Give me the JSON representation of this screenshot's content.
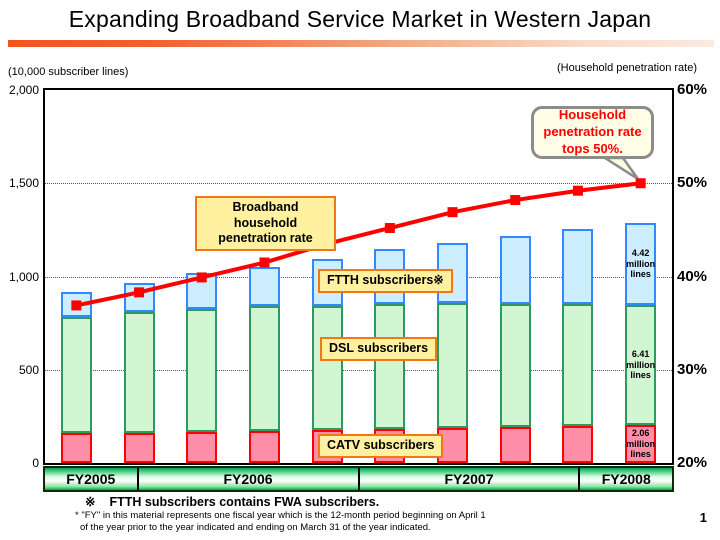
{
  "page": {
    "title": "Expanding Broadband Service Market in Western Japan",
    "page_number": "1"
  },
  "axis_units": {
    "left": "(10,000 subscriber lines)",
    "right": "(Household penetration rate)"
  },
  "chart_data": {
    "type": "bar",
    "subtype": "stacked-bars-with-penetration-line",
    "bar_slots": 10,
    "x_bands": [
      {
        "label": "FY2005",
        "bars": 1
      },
      {
        "label": "FY2006",
        "bars": 4
      },
      {
        "label": "FY2007",
        "bars": 4
      },
      {
        "label": "FY2008",
        "bars": 1
      }
    ],
    "left_axis": {
      "min": 0,
      "max": 2000,
      "tick_values": [
        2000,
        1500,
        1000,
        500,
        0
      ],
      "tick_labels": [
        "2,000",
        "1,500",
        "1,000",
        "500",
        "0"
      ],
      "gridlines_at": [
        1500,
        1000,
        500
      ]
    },
    "right_axis": {
      "min": 20,
      "max": 60,
      "tick_labels": [
        "60%",
        "50%",
        "40%",
        "30%",
        "20%"
      ]
    },
    "series": [
      {
        "name": "CATV subscribers",
        "fill": "#ff8fa8",
        "border": "#ff0000",
        "values": [
          160,
          163,
          167,
          172,
          178,
          185,
          188,
          193,
          198,
          206
        ]
      },
      {
        "name": "DSL subscribers",
        "fill": "#d2f5d2",
        "border": "#2e9960",
        "values": [
          622,
          648,
          658,
          668,
          665,
          668,
          672,
          660,
          655,
          641
        ]
      },
      {
        "name": "FTTH subscribers",
        "fill": "#cceeff",
        "border": "#3388ff",
        "values": [
          135,
          155,
          193,
          210,
          250,
          294,
          322,
          363,
          402,
          442
        ]
      }
    ],
    "line": {
      "name": "Broadband household penetration rate",
      "color": "#ff0000",
      "values": [
        36.9,
        38.3,
        39.9,
        41.5,
        43.5,
        45.2,
        46.9,
        48.2,
        49.2,
        50.0
      ]
    },
    "last_bar_value_labels": [
      {
        "series_index": 2,
        "text": "4.42 million lines"
      },
      {
        "series_index": 1,
        "text": "6.41 million lines"
      },
      {
        "series_index": 0,
        "text": "2.06 million lines"
      }
    ]
  },
  "labels": {
    "ftth": "FTTH subscribers※",
    "dsl": "DSL subscribers",
    "catv": "CATV subscribers",
    "line_callout": "Broadband household penetration rate",
    "bubble": "Household penetration rate tops 50%."
  },
  "footnotes": {
    "note1_symbol": "※",
    "note1": "FTTH subscribers contains FWA subscribers.",
    "note2_line1": "* \"FY\" in this material represents one fiscal year which is the 12-month period beginning on April 1",
    "note2_line2": "of the year prior to the year indicated and ending on March 31 of the year indicated."
  }
}
